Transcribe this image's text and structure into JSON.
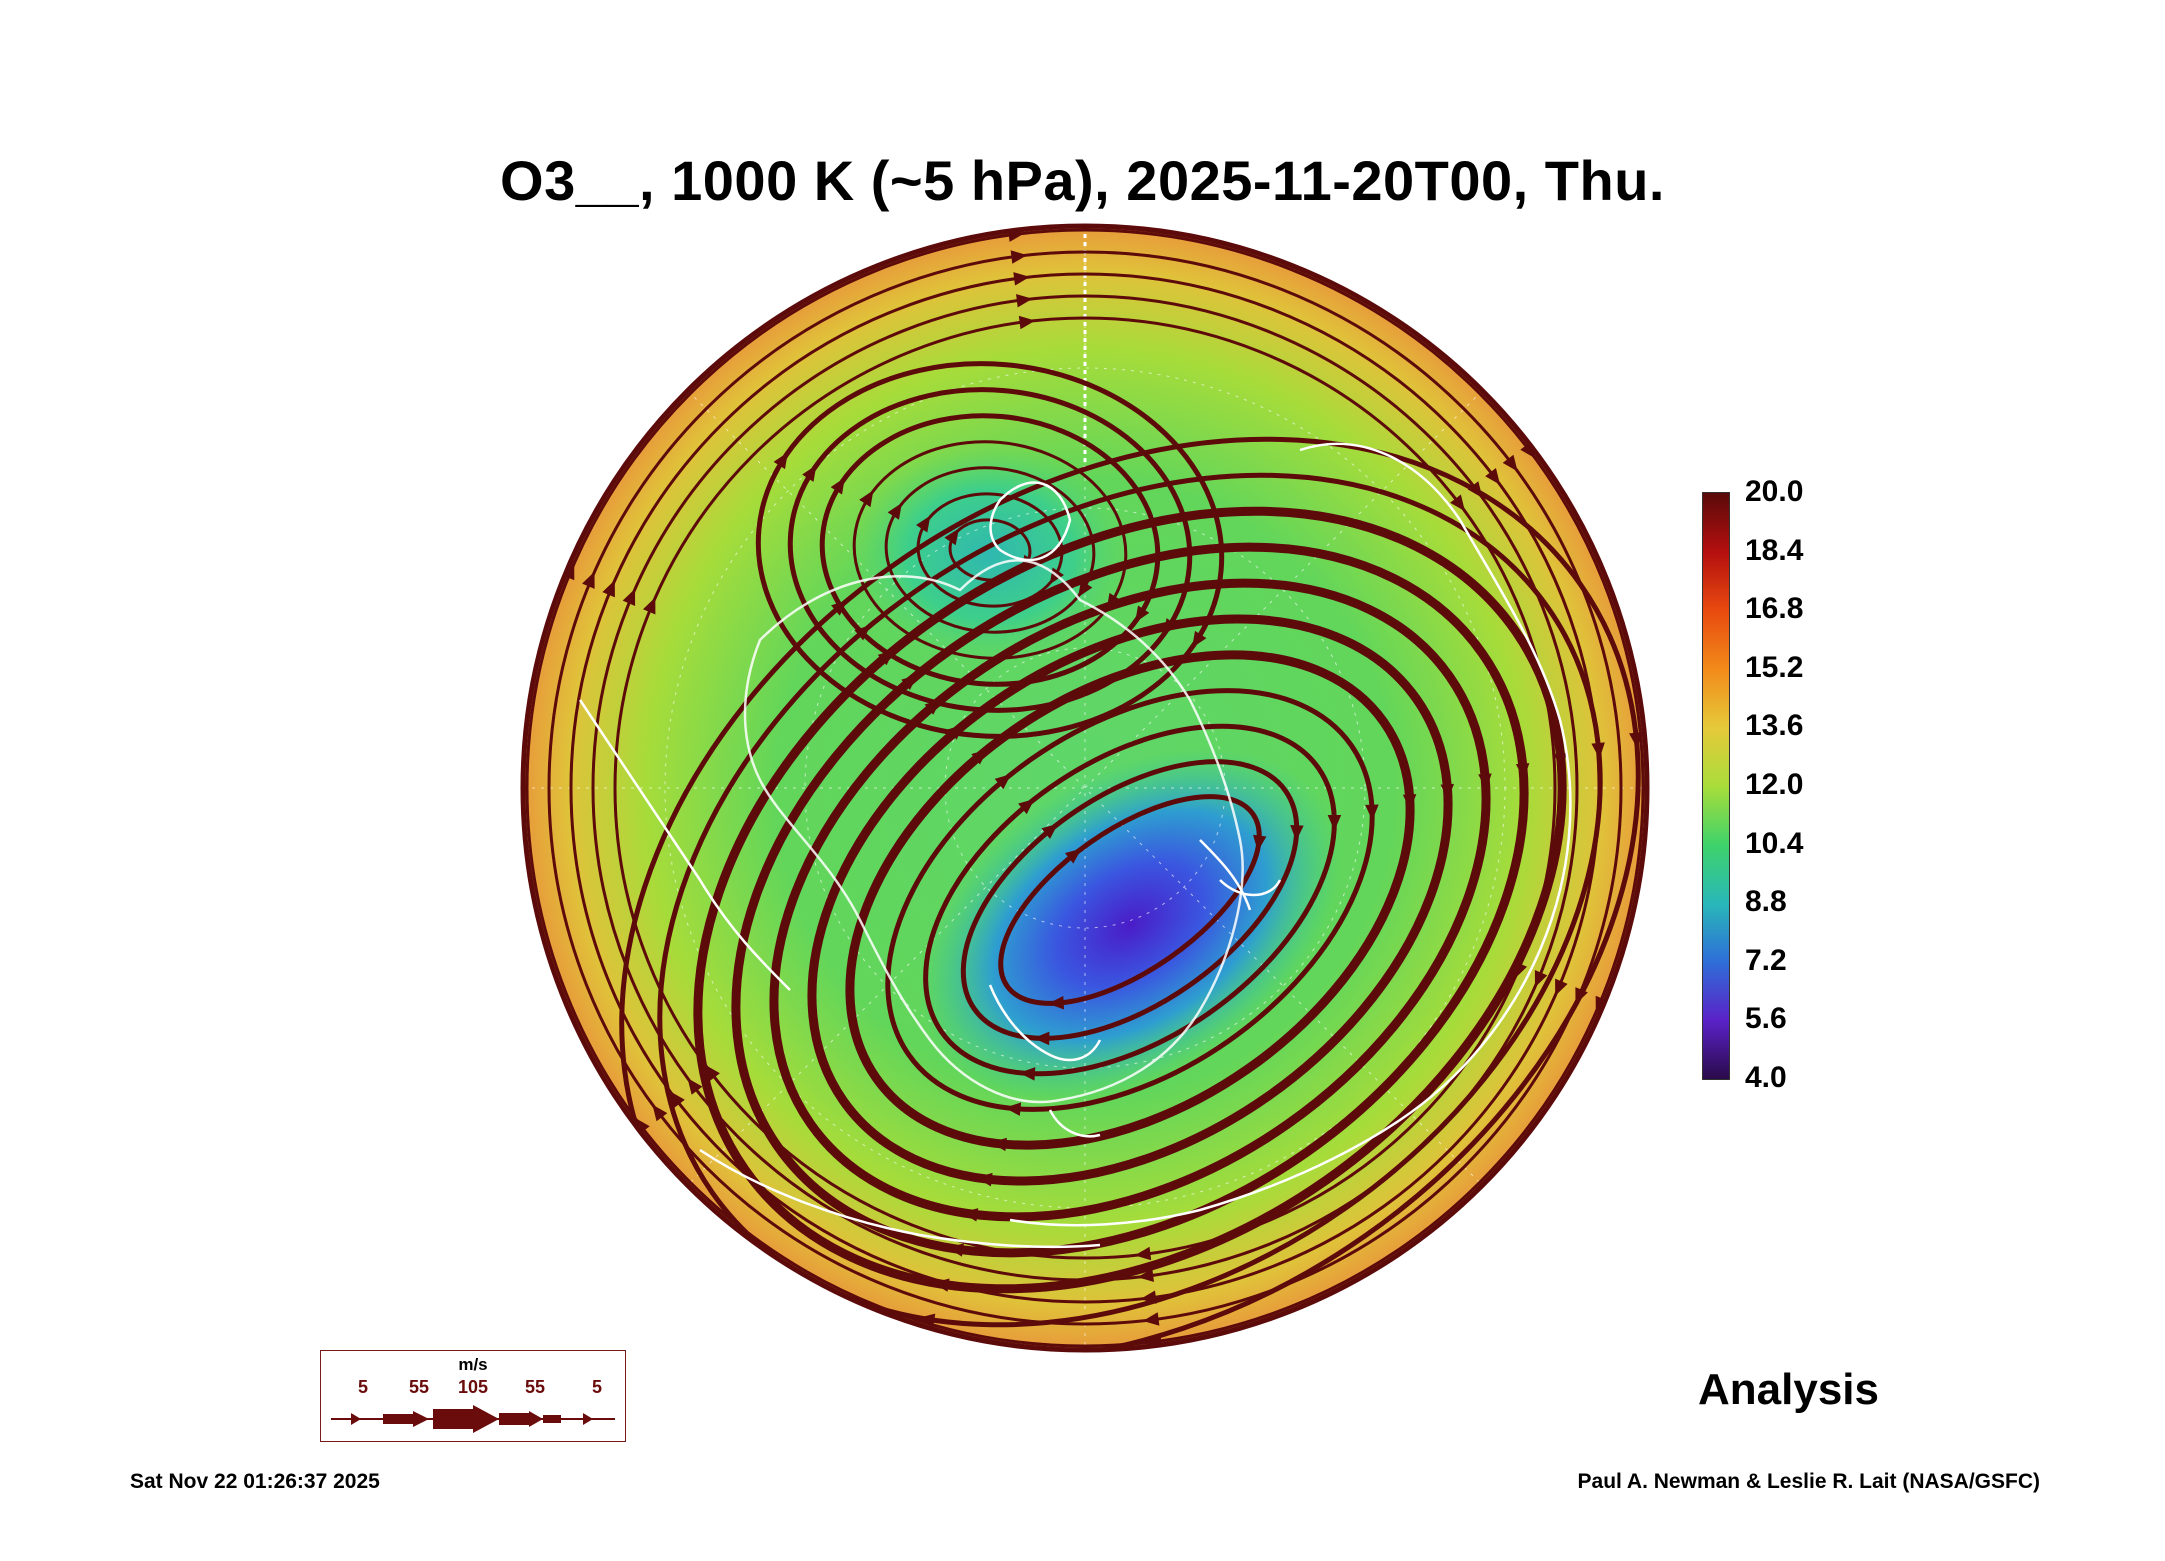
{
  "title": "O3__, 1000 K (~5 hPa), 2025-11-20T00, Thu.",
  "colorbar": {
    "labels": [
      "20.0",
      "18.4",
      "16.8",
      "15.2",
      "13.6",
      "12.0",
      "10.4",
      "8.8",
      "7.2",
      "5.6",
      "4.0"
    ],
    "min": 4.0,
    "max": 20.0,
    "colors": {
      "high": "#5a0a0a",
      "mid_high": "#e84a0f",
      "mid": "#a9dd3a",
      "mid_low": "#29b8b8",
      "low": "#2a0a4a"
    }
  },
  "wind_legend": {
    "unit": "m/s",
    "values": [
      "5",
      "55",
      "105",
      "55",
      "5"
    ]
  },
  "analysis_label": "Analysis",
  "footer": {
    "timestamp": "Sat Nov 22 01:26:37 2025",
    "credit": "Paul A. Newman & Leslie R. Lait (NASA/GSFC)"
  },
  "map": {
    "projection": "north-polar-stereographic",
    "colors": {
      "streamline": "#5c0a0a",
      "coastline": "#ffffff",
      "low_ozone_core": "#4a30d8",
      "rim": "#e6a83a"
    }
  }
}
